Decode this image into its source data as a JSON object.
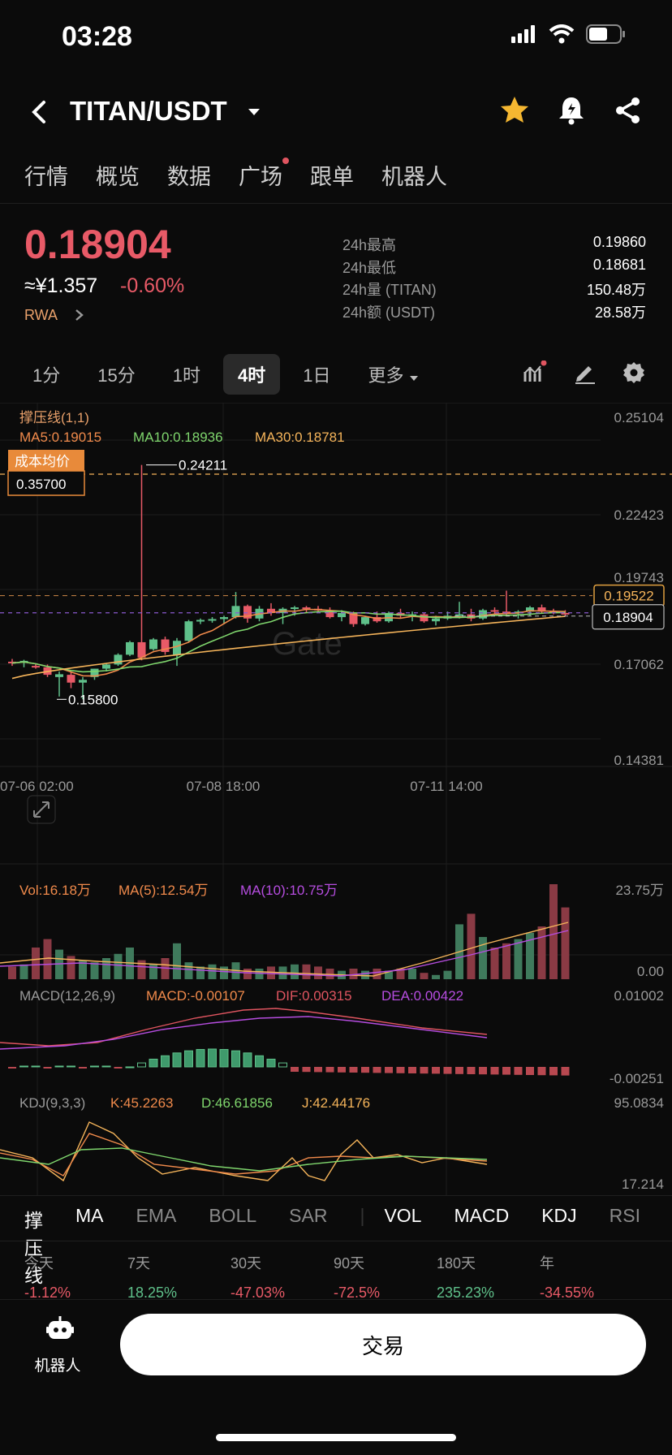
{
  "status": {
    "time": "03:28"
  },
  "header": {
    "pair": "TITAN/USDT"
  },
  "tabs": [
    {
      "label": "行情"
    },
    {
      "label": "概览"
    },
    {
      "label": "数据"
    },
    {
      "label": "广场"
    },
    {
      "label": "跟单"
    },
    {
      "label": "机器人"
    }
  ],
  "ticker": {
    "price": "0.18904",
    "cny": "≈¥1.357",
    "change": "-0.60%",
    "tag": "RWA",
    "stats": [
      {
        "k": "24h最高",
        "v": "0.19860"
      },
      {
        "k": "24h最低",
        "v": "0.18681"
      },
      {
        "k": "24h量 (TITAN)",
        "v": "150.48万"
      },
      {
        "k": "24h额 (USDT)",
        "v": "28.58万"
      }
    ]
  },
  "timeframes": {
    "items": [
      "1分",
      "15分",
      "1时",
      "4时",
      "1日"
    ],
    "active": "4时",
    "more": "更多"
  },
  "chart_labels": {
    "support": "撑压线(1,1)",
    "ma5": "MA5:0.19015",
    "ma10": "MA10:0.18936",
    "ma30": "MA30:0.18781",
    "cost_label": "成本均价",
    "cost_value": "0.35700",
    "high_label": "0.24211",
    "low_label": "0.15800",
    "resistance_value": "0.19522",
    "current_value": "0.18904",
    "price_axis": [
      "0.25104",
      "0.22423",
      "0.19743",
      "0.17062",
      "0.14381"
    ],
    "time_axis": [
      "07-06 02:00",
      "07-08 18:00",
      "07-11 14:00"
    ],
    "watermark": "Gate",
    "vol_legend": "Vol:16.18万",
    "vol_ma5": "MA(5):12.54万",
    "vol_ma10": "MA(10):10.75万",
    "vol_top": "23.75万",
    "vol_bottom": "0.00",
    "macd_title": "MACD(12,26,9)",
    "macd_val": "MACD:-0.00107",
    "macd_dif": "DIF:0.00315",
    "macd_dea": "DEA:0.00422",
    "macd_top": "0.01002",
    "macd_bottom": "-0.00251",
    "kdj_title": "KDJ(9,3,3)",
    "kdj_k": "K:45.2263",
    "kdj_d": "D:46.61856",
    "kdj_j": "J:42.44176",
    "kdj_top": "95.0834",
    "kdj_bottom": "17.214"
  },
  "indicators": [
    "撑压线",
    "MA",
    "EMA",
    "BOLL",
    "SAR",
    "VOL",
    "MACD",
    "KDJ",
    "RSI"
  ],
  "performance": [
    {
      "label": "今天",
      "value": "-1.12%",
      "color": "#e85a67"
    },
    {
      "label": "7天",
      "value": "18.25%",
      "color": "#5fc08a"
    },
    {
      "label": "30天",
      "value": "-47.03%",
      "color": "#e85a67"
    },
    {
      "label": "90天",
      "value": "-72.5%",
      "color": "#e85a67"
    },
    {
      "label": "180天",
      "value": "235.23%",
      "color": "#5fc08a"
    },
    {
      "label": "年",
      "value": "-34.55%",
      "color": "#e85a67"
    }
  ],
  "bottom": {
    "robot_label": "机器人",
    "trade_label": "交易"
  },
  "colors": {
    "up": "#5fc08a",
    "down": "#e85a67",
    "ma5": "#f08a4b",
    "ma10": "#7fd66d",
    "ma30": "#f5b45a",
    "accent": "#f5b731"
  }
}
